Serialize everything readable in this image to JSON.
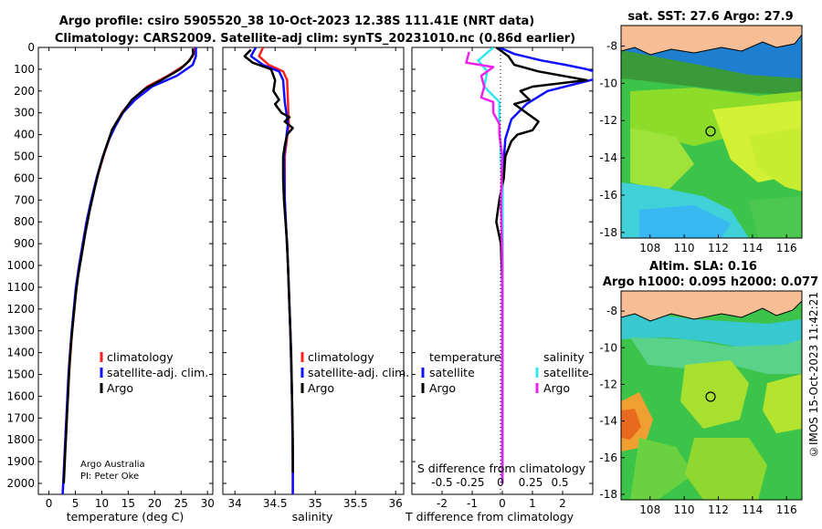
{
  "figure": {
    "title_line1": "Argo profile: csiro 5905520_38 10-Oct-2023 12.38S 111.41E (NRT data)",
    "title_line2": "Climatology: CARS2009. Satellite-adj clim: synTS_20231010.nc (0.86d earlier)",
    "credit_line1": "Argo Australia",
    "credit_line2": "PI: Peter Oke",
    "imos_stamp": "©IMOS 15-Oct-2023 11:42:21"
  },
  "colors": {
    "climatology": "#ff2020",
    "satellite": "#1010ff",
    "argo": "#000000",
    "sat_salinity": "#30e8f0",
    "argo_salinity": "#f020f0"
  },
  "chart_data": [
    {
      "type": "line",
      "id": "temperature",
      "xlabel": "temperature (deg C)",
      "ylabel": "",
      "xlim": [
        -2,
        31
      ],
      "ylim": [
        2050,
        0
      ],
      "xticks": [
        "0",
        "5",
        "10",
        "15",
        "20",
        "25",
        "30"
      ],
      "yticks": [
        "0",
        "100",
        "200",
        "300",
        "400",
        "500",
        "600",
        "700",
        "800",
        "900",
        "1000",
        "1100",
        "1200",
        "1300",
        "1400",
        "1500",
        "1600",
        "1700",
        "1800",
        "1900",
        "2000"
      ],
      "legend": [
        "climatology",
        "satellite-adj. clim.",
        "Argo"
      ],
      "series": [
        {
          "name": "climatology",
          "color_key": "climatology",
          "points": [
            [
              27.7,
              0
            ],
            [
              27.5,
              20
            ],
            [
              27.2,
              40
            ],
            [
              25.8,
              80
            ],
            [
              22.5,
              130
            ],
            [
              18.6,
              180
            ],
            [
              15.8,
              240
            ],
            [
              13.8,
              300
            ],
            [
              12.5,
              360
            ],
            [
              11.4,
              420
            ],
            [
              10.3,
              500
            ],
            [
              9.1,
              600
            ],
            [
              8.1,
              700
            ],
            [
              7.2,
              800
            ],
            [
              6.5,
              900
            ],
            [
              5.8,
              1000
            ],
            [
              5.2,
              1100
            ],
            [
              4.8,
              1200
            ],
            [
              4.4,
              1300
            ],
            [
              4.1,
              1400
            ],
            [
              3.8,
              1500
            ],
            [
              3.6,
              1600
            ],
            [
              3.3,
              1700
            ],
            [
              3.1,
              1800
            ],
            [
              2.9,
              1900
            ],
            [
              2.7,
              2000
            ],
            [
              2.6,
              2050
            ]
          ]
        },
        {
          "name": "satellite-adj. clim.",
          "color_key": "satellite",
          "points": [
            [
              27.8,
              0
            ],
            [
              27.8,
              40
            ],
            [
              27.2,
              80
            ],
            [
              24.2,
              130
            ],
            [
              19.5,
              180
            ],
            [
              16.3,
              240
            ],
            [
              14.0,
              300
            ],
            [
              12.6,
              360
            ],
            [
              11.4,
              420
            ],
            [
              10.2,
              500
            ],
            [
              9.0,
              600
            ],
            [
              8.0,
              700
            ],
            [
              7.1,
              800
            ],
            [
              6.4,
              900
            ],
            [
              5.7,
              1000
            ],
            [
              5.1,
              1100
            ],
            [
              4.7,
              1200
            ],
            [
              4.3,
              1300
            ],
            [
              4.0,
              1400
            ],
            [
              3.7,
              1500
            ],
            [
              3.5,
              1600
            ],
            [
              3.3,
              1700
            ],
            [
              3.1,
              1800
            ],
            [
              2.9,
              1900
            ],
            [
              2.7,
              2000
            ],
            [
              2.6,
              2050
            ]
          ]
        },
        {
          "name": "Argo",
          "color_key": "argo",
          "points": [
            [
              27.2,
              5
            ],
            [
              27.3,
              30
            ],
            [
              26.6,
              60
            ],
            [
              24.8,
              100
            ],
            [
              21.6,
              145
            ],
            [
              18.2,
              190
            ],
            [
              15.7,
              240
            ],
            [
              13.9,
              300
            ],
            [
              12.6,
              350
            ],
            [
              11.9,
              380
            ],
            [
              11.5,
              410
            ],
            [
              10.5,
              480
            ],
            [
              9.5,
              560
            ],
            [
              8.6,
              650
            ],
            [
              7.7,
              750
            ],
            [
              6.9,
              850
            ],
            [
              6.2,
              950
            ],
            [
              5.5,
              1050
            ],
            [
              5.0,
              1150
            ],
            [
              4.6,
              1250
            ],
            [
              4.2,
              1350
            ],
            [
              3.9,
              1450
            ],
            [
              3.7,
              1550
            ],
            [
              3.5,
              1650
            ],
            [
              3.3,
              1750
            ],
            [
              3.1,
              1850
            ],
            [
              2.9,
              1950
            ],
            [
              2.8,
              2000
            ]
          ]
        }
      ]
    },
    {
      "type": "line",
      "id": "salinity",
      "xlabel": "salinity",
      "ylabel": "",
      "xlim": [
        33.85,
        36.1
      ],
      "ylim": [
        2050,
        0
      ],
      "xticks": [
        "34",
        "34.5",
        "35",
        "35.5",
        "36"
      ],
      "legend": [
        "climatology",
        "satellite-adj. clim.",
        "Argo"
      ],
      "series": [
        {
          "name": "climatology",
          "color_key": "climatology",
          "points": [
            [
              34.35,
              0
            ],
            [
              34.3,
              40
            ],
            [
              34.42,
              80
            ],
            [
              34.6,
              110
            ],
            [
              34.65,
              150
            ],
            [
              34.66,
              250
            ],
            [
              34.67,
              350
            ],
            [
              34.62,
              500
            ],
            [
              34.62,
              700
            ],
            [
              34.66,
              1000
            ],
            [
              34.69,
              1300
            ],
            [
              34.71,
              1600
            ],
            [
              34.72,
              1900
            ],
            [
              34.72,
              2050
            ]
          ]
        },
        {
          "name": "satellite-adj. clim.",
          "color_key": "satellite",
          "points": [
            [
              34.26,
              0
            ],
            [
              34.2,
              40
            ],
            [
              34.35,
              80
            ],
            [
              34.55,
              110
            ],
            [
              34.6,
              150
            ],
            [
              34.62,
              250
            ],
            [
              34.66,
              350
            ],
            [
              34.61,
              500
            ],
            [
              34.62,
              700
            ],
            [
              34.66,
              1000
            ],
            [
              34.69,
              1300
            ],
            [
              34.71,
              1600
            ],
            [
              34.72,
              1900
            ],
            [
              34.72,
              2050
            ]
          ]
        },
        {
          "name": "Argo",
          "color_key": "argo",
          "points": [
            [
              34.2,
              10
            ],
            [
              34.12,
              40
            ],
            [
              34.22,
              70
            ],
            [
              34.45,
              100
            ],
            [
              34.5,
              150
            ],
            [
              34.48,
              200
            ],
            [
              34.55,
              240
            ],
            [
              34.5,
              260
            ],
            [
              34.58,
              300
            ],
            [
              34.68,
              320
            ],
            [
              34.62,
              340
            ],
            [
              34.72,
              370
            ],
            [
              34.65,
              400
            ],
            [
              34.62,
              450
            ],
            [
              34.6,
              500
            ],
            [
              34.6,
              600
            ],
            [
              34.61,
              700
            ],
            [
              34.63,
              800
            ],
            [
              34.65,
              900
            ],
            [
              34.66,
              1000
            ],
            [
              34.68,
              1200
            ],
            [
              34.7,
              1400
            ],
            [
              34.71,
              1600
            ],
            [
              34.72,
              1800
            ],
            [
              34.72,
              1950
            ]
          ]
        }
      ]
    },
    {
      "type": "line",
      "id": "differences",
      "xlabel": "T difference from climatology",
      "ylabel": "",
      "xlim": [
        -3,
        3
      ],
      "ylim": [
        2050,
        0
      ],
      "xticks": [
        "-2",
        "-1",
        "0",
        "1",
        "2"
      ],
      "top_label": "S difference from climatology",
      "top_ticks": [
        "-0.5",
        "-0.25",
        "0",
        "0.25",
        "0.5"
      ],
      "legend_left_title": "temperature",
      "legend_right_title": "salinity",
      "legend_left": [
        "satellite",
        "Argo"
      ],
      "legend_right": [
        "satellite",
        "Argo"
      ],
      "series": [
        {
          "name": "T satellite",
          "color_key": "satellite",
          "points": [
            [
              -0.1,
              0
            ],
            [
              0.4,
              30
            ],
            [
              1.3,
              60
            ],
            [
              2.1,
              80
            ],
            [
              2.8,
              100
            ],
            [
              3.5,
              130
            ],
            [
              1.5,
              200
            ],
            [
              0.8,
              260
            ],
            [
              0.3,
              330
            ],
            [
              0.1,
              420
            ],
            [
              0.0,
              600
            ],
            [
              0.0,
              1000
            ],
            [
              0.0,
              1500
            ],
            [
              0.0,
              2000
            ]
          ]
        },
        {
          "name": "T Argo",
          "color_key": "argo",
          "points": [
            [
              -0.2,
              0
            ],
            [
              0.2,
              40
            ],
            [
              0.4,
              80
            ],
            [
              1.2,
              110
            ],
            [
              2.8,
              150
            ],
            [
              1.0,
              180
            ],
            [
              0.6,
              200
            ],
            [
              0.9,
              240
            ],
            [
              0.4,
              260
            ],
            [
              0.8,
              300
            ],
            [
              1.2,
              340
            ],
            [
              1.0,
              380
            ],
            [
              0.5,
              400
            ],
            [
              0.3,
              430
            ],
            [
              0.1,
              500
            ],
            [
              0.05,
              600
            ],
            [
              -0.1,
              700
            ],
            [
              -0.2,
              800
            ],
            [
              -0.05,
              900
            ],
            [
              0.0,
              1100
            ],
            [
              0.0,
              1500
            ],
            [
              0.0,
              2000
            ]
          ]
        },
        {
          "name": "S satellite",
          "color_key": "sat_salinity",
          "points": [
            [
              -0.3,
              0
            ],
            [
              -0.8,
              60
            ],
            [
              -0.5,
              110
            ],
            [
              -0.6,
              180
            ],
            [
              -0.1,
              250
            ],
            [
              -0.1,
              350
            ],
            [
              -0.05,
              500
            ],
            [
              0.0,
              700
            ],
            [
              0.0,
              1000
            ],
            [
              0.0,
              1500
            ],
            [
              0.0,
              2000
            ]
          ]
        },
        {
          "name": "S Argo",
          "color_key": "argo_salinity",
          "points": [
            [
              -1.1,
              20
            ],
            [
              -1.2,
              70
            ],
            [
              -0.3,
              90
            ],
            [
              -0.7,
              130
            ],
            [
              -0.6,
              180
            ],
            [
              -0.7,
              230
            ],
            [
              -0.3,
              250
            ],
            [
              -0.3,
              300
            ],
            [
              -0.1,
              350
            ],
            [
              -0.1,
              400
            ],
            [
              0.0,
              500
            ],
            [
              -0.05,
              700
            ],
            [
              0.0,
              1000
            ],
            [
              0.0,
              1500
            ],
            [
              0.0,
              2000
            ]
          ]
        }
      ]
    },
    {
      "type": "heatmap",
      "id": "sst_map",
      "title": "sat. SST: 27.6 Argo: 27.9",
      "xticks": [
        "108",
        "110",
        "112",
        "114",
        "116"
      ],
      "yticks": [
        "-8",
        "-10",
        "-12",
        "-14",
        "-16",
        "-18"
      ],
      "xlim": [
        106.3,
        116.9
      ],
      "ylim": [
        -18.3,
        -6.9
      ],
      "marker": [
        111.41,
        -12.38
      ]
    },
    {
      "type": "heatmap",
      "id": "sla_map",
      "title_line1": "Altim. SLA: 0.16",
      "title_line2": "Argo h1000: 0.095 h2000: 0.077",
      "xticks": [
        "108",
        "110",
        "112",
        "114",
        "116"
      ],
      "yticks": [
        "-8",
        "-10",
        "-12",
        "-14",
        "-16",
        "-18"
      ],
      "xlim": [
        106.3,
        116.9
      ],
      "ylim": [
        -18.3,
        -6.9
      ],
      "marker": [
        111.41,
        -12.38
      ]
    }
  ]
}
